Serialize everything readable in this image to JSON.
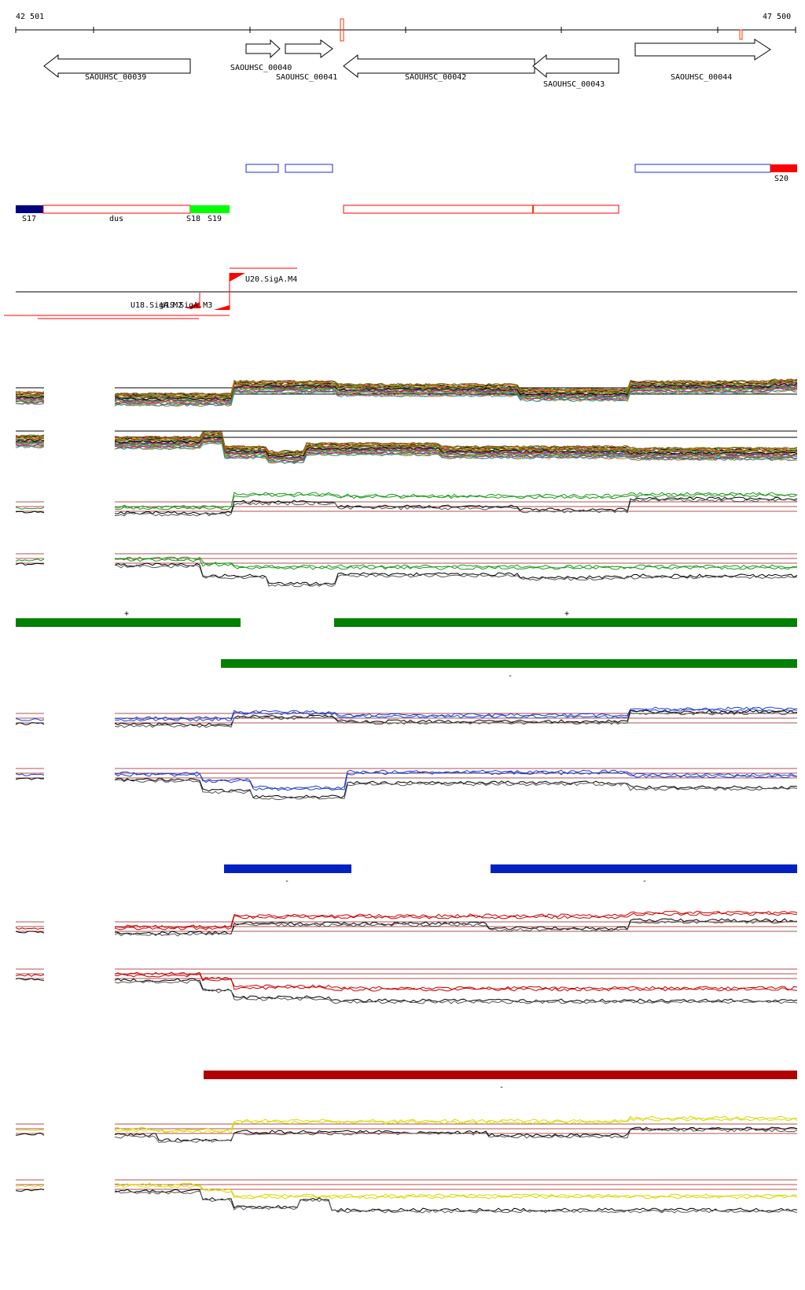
{
  "ruler": {
    "start_label": "42 501",
    "end_label": "47 500"
  },
  "genes": [
    {
      "name": "SAOUHSC_00039",
      "strand": "-"
    },
    {
      "name": "SAOUHSC_00040",
      "strand": "+"
    },
    {
      "name": "SAOUHSC_00041",
      "strand": "+"
    },
    {
      "name": "SAOUHSC_00042",
      "strand": "-"
    },
    {
      "name": "SAOUHSC_00043",
      "strand": "-"
    },
    {
      "name": "SAOUHSC_00044",
      "strand": "+"
    }
  ],
  "segments": {
    "labels": [
      "S17",
      "dus",
      "S18",
      "S19",
      "S20"
    ]
  },
  "promoters": {
    "labels": [
      "U18.SigA.M2",
      "U19.SigA.M3",
      "U20.SigA.M4"
    ]
  },
  "strand_marks": {
    "plus": "+",
    "minus": "-"
  },
  "colors": {
    "gene_outline": "#000000",
    "blue_outline": "#1a33cc",
    "red_outline": "#ff0000",
    "navy": "#000080",
    "green_bright": "#00ff00",
    "red_bright": "#ff0000",
    "green_bar": "#008000",
    "blue_bar": "#0022c0",
    "dark_red_bar": "#b00000",
    "trace_green": "#1a9a1a",
    "trace_blue": "#2040d0",
    "trace_red": "#cc0000",
    "trace_yellow": "#d8d800",
    "trace_black": "#000000",
    "thresh": "#b05050"
  }
}
